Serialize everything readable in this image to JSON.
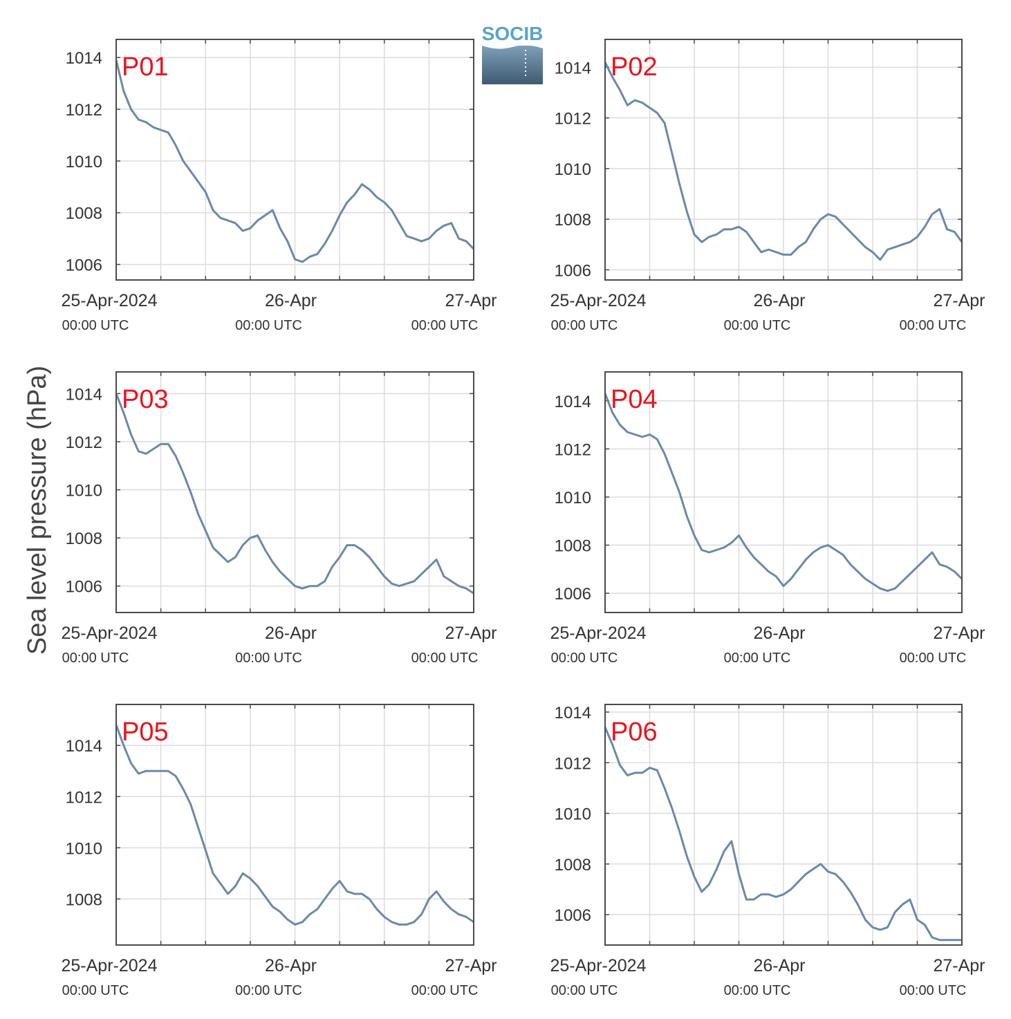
{
  "figure": {
    "ylabel": "Sea level pressure (hPa)",
    "logo_text": "SOCIB",
    "colors": {
      "line": "#6a89ab",
      "panel_label": "#e8141e",
      "axis": "#4a4a4a",
      "grid": "#dcdcdc",
      "text": "#333333",
      "logo_text": "#5ba3c9",
      "logo_top": "#7fa0b8",
      "logo_bottom": "#3f5a73"
    }
  },
  "chart_data": [
    {
      "type": "line",
      "panel": "P01",
      "x_ticks": [
        {
          "main": "25-Apr-2024",
          "sub": "00:00 UTC"
        },
        {
          "main": "26-Apr",
          "sub": "00:00 UTC"
        },
        {
          "main": "27-Apr",
          "sub": "00:00 UTC"
        }
      ],
      "xlim_hours": [
        0,
        48
      ],
      "ylim": [
        1005.4,
        1014.7
      ],
      "yticks": [
        1006,
        1008,
        1010,
        1012,
        1014
      ],
      "grid": true,
      "series": [
        {
          "hours": [
            0,
            1,
            2,
            3,
            4,
            5,
            6,
            7,
            8,
            9,
            10,
            11,
            12,
            13,
            14,
            15,
            16,
            17,
            18,
            19,
            20,
            21,
            22,
            23,
            24,
            25,
            26,
            27,
            28,
            29,
            30,
            31,
            32,
            33,
            34,
            35,
            36,
            37,
            38,
            39,
            40,
            41,
            42,
            43,
            44,
            45,
            46,
            47,
            48
          ],
          "values": [
            1013.9,
            1012.7,
            1012.0,
            1011.6,
            1011.5,
            1011.3,
            1011.2,
            1011.1,
            1010.6,
            1010.0,
            1009.6,
            1009.2,
            1008.8,
            1008.1,
            1007.8,
            1007.7,
            1007.6,
            1007.3,
            1007.4,
            1007.7,
            1007.9,
            1008.1,
            1007.4,
            1006.9,
            1006.2,
            1006.1,
            1006.3,
            1006.4,
            1006.8,
            1007.3,
            1007.9,
            1008.4,
            1008.7,
            1009.1,
            1008.9,
            1008.6,
            1008.4,
            1008.1,
            1007.6,
            1007.1,
            1007.0,
            1006.9,
            1007.0,
            1007.3,
            1007.5,
            1007.6,
            1007.0,
            1006.9,
            1006.6
          ]
        }
      ]
    },
    {
      "type": "line",
      "panel": "P02",
      "x_ticks": [
        {
          "main": "25-Apr-2024",
          "sub": "00:00 UTC"
        },
        {
          "main": "26-Apr",
          "sub": "00:00 UTC"
        },
        {
          "main": "27-Apr",
          "sub": "00:00 UTC"
        }
      ],
      "xlim_hours": [
        0,
        48
      ],
      "ylim": [
        1005.6,
        1015.1
      ],
      "yticks": [
        1006,
        1008,
        1010,
        1012,
        1014
      ],
      "grid": true,
      "series": [
        {
          "hours": [
            0,
            1,
            2,
            3,
            4,
            5,
            6,
            7,
            8,
            9,
            10,
            11,
            12,
            13,
            14,
            15,
            16,
            17,
            18,
            19,
            20,
            21,
            22,
            23,
            24,
            25,
            26,
            27,
            28,
            29,
            30,
            31,
            32,
            33,
            34,
            35,
            36,
            37,
            38,
            39,
            40,
            41,
            42,
            43,
            44,
            45,
            46,
            47,
            48
          ],
          "values": [
            1014.2,
            1013.6,
            1013.1,
            1012.5,
            1012.7,
            1012.6,
            1012.4,
            1012.2,
            1011.8,
            1010.6,
            1009.4,
            1008.3,
            1007.4,
            1007.1,
            1007.3,
            1007.4,
            1007.6,
            1007.6,
            1007.7,
            1007.5,
            1007.1,
            1006.7,
            1006.8,
            1006.7,
            1006.6,
            1006.6,
            1006.9,
            1007.1,
            1007.6,
            1008.0,
            1008.2,
            1008.1,
            1007.8,
            1007.5,
            1007.2,
            1006.9,
            1006.7,
            1006.4,
            1006.8,
            1006.9,
            1007.0,
            1007.1,
            1007.3,
            1007.7,
            1008.2,
            1008.4,
            1007.6,
            1007.5,
            1007.1
          ]
        }
      ]
    },
    {
      "type": "line",
      "panel": "P03",
      "x_ticks": [
        {
          "main": "25-Apr-2024",
          "sub": "00:00 UTC"
        },
        {
          "main": "26-Apr",
          "sub": "00:00 UTC"
        },
        {
          "main": "27-Apr",
          "sub": "00:00 UTC"
        }
      ],
      "xlim_hours": [
        0,
        48
      ],
      "ylim": [
        1004.9,
        1014.9
      ],
      "yticks": [
        1006,
        1008,
        1010,
        1012,
        1014
      ],
      "grid": true,
      "series": [
        {
          "hours": [
            0,
            1,
            2,
            3,
            4,
            5,
            6,
            7,
            8,
            9,
            10,
            11,
            12,
            13,
            14,
            15,
            16,
            17,
            18,
            19,
            20,
            21,
            22,
            23,
            24,
            25,
            26,
            27,
            28,
            29,
            30,
            31,
            32,
            33,
            34,
            35,
            36,
            37,
            38,
            39,
            40,
            41,
            42,
            43,
            44,
            45,
            46,
            47,
            48
          ],
          "values": [
            1014.0,
            1013.2,
            1012.3,
            1011.6,
            1011.5,
            1011.7,
            1011.9,
            1011.9,
            1011.4,
            1010.7,
            1009.9,
            1009.0,
            1008.3,
            1007.6,
            1007.3,
            1007.0,
            1007.2,
            1007.7,
            1008.0,
            1008.1,
            1007.5,
            1007.0,
            1006.6,
            1006.3,
            1006.0,
            1005.9,
            1006.0,
            1006.0,
            1006.2,
            1006.8,
            1007.2,
            1007.7,
            1007.7,
            1007.5,
            1007.2,
            1006.8,
            1006.4,
            1006.1,
            1006.0,
            1006.1,
            1006.2,
            1006.5,
            1006.8,
            1007.1,
            1006.4,
            1006.2,
            1006.0,
            1005.9,
            1005.7
          ]
        }
      ]
    },
    {
      "type": "line",
      "panel": "P04",
      "x_ticks": [
        {
          "main": "25-Apr-2024",
          "sub": "00:00 UTC"
        },
        {
          "main": "26-Apr",
          "sub": "00:00 UTC"
        },
        {
          "main": "27-Apr",
          "sub": "00:00 UTC"
        }
      ],
      "xlim_hours": [
        0,
        48
      ],
      "ylim": [
        1005.2,
        1015.2
      ],
      "yticks": [
        1006,
        1008,
        1010,
        1012,
        1014
      ],
      "grid": true,
      "series": [
        {
          "hours": [
            0,
            1,
            2,
            3,
            4,
            5,
            6,
            7,
            8,
            9,
            10,
            11,
            12,
            13,
            14,
            15,
            16,
            17,
            18,
            19,
            20,
            21,
            22,
            23,
            24,
            25,
            26,
            27,
            28,
            29,
            30,
            31,
            32,
            33,
            34,
            35,
            36,
            37,
            38,
            39,
            40,
            41,
            42,
            43,
            44,
            45,
            46,
            47,
            48
          ],
          "values": [
            1014.3,
            1013.5,
            1013.0,
            1012.7,
            1012.6,
            1012.5,
            1012.6,
            1012.4,
            1011.8,
            1011.0,
            1010.2,
            1009.2,
            1008.4,
            1007.8,
            1007.7,
            1007.8,
            1007.9,
            1008.1,
            1008.4,
            1007.9,
            1007.5,
            1007.2,
            1006.9,
            1006.7,
            1006.3,
            1006.6,
            1007.0,
            1007.4,
            1007.7,
            1007.9,
            1008.0,
            1007.8,
            1007.6,
            1007.2,
            1006.9,
            1006.6,
            1006.4,
            1006.2,
            1006.1,
            1006.2,
            1006.5,
            1006.8,
            1007.1,
            1007.4,
            1007.7,
            1007.2,
            1007.1,
            1006.9,
            1006.6
          ]
        }
      ]
    },
    {
      "type": "line",
      "panel": "P05",
      "x_ticks": [
        {
          "main": "25-Apr-2024",
          "sub": "00:00 UTC"
        },
        {
          "main": "26-Apr",
          "sub": "00:00 UTC"
        },
        {
          "main": "27-Apr",
          "sub": "00:00 UTC"
        }
      ],
      "xlim_hours": [
        0,
        48
      ],
      "ylim": [
        1006.2,
        1015.6
      ],
      "yticks": [
        1008,
        1010,
        1012,
        1014
      ],
      "grid": true,
      "series": [
        {
          "hours": [
            0,
            1,
            2,
            3,
            4,
            5,
            6,
            7,
            8,
            9,
            10,
            11,
            12,
            13,
            14,
            15,
            16,
            17,
            18,
            19,
            20,
            21,
            22,
            23,
            24,
            25,
            26,
            27,
            28,
            29,
            30,
            31,
            32,
            33,
            34,
            35,
            36,
            37,
            38,
            39,
            40,
            41,
            42,
            43,
            44,
            45,
            46,
            47,
            48
          ],
          "values": [
            1014.8,
            1014.0,
            1013.3,
            1012.9,
            1013.0,
            1013.0,
            1013.0,
            1013.0,
            1012.8,
            1012.3,
            1011.7,
            1010.8,
            1009.9,
            1009.0,
            1008.6,
            1008.2,
            1008.5,
            1009.0,
            1008.8,
            1008.5,
            1008.1,
            1007.7,
            1007.5,
            1007.2,
            1007.0,
            1007.1,
            1007.4,
            1007.6,
            1008.0,
            1008.4,
            1008.7,
            1008.3,
            1008.2,
            1008.2,
            1008.0,
            1007.6,
            1007.3,
            1007.1,
            1007.0,
            1007.0,
            1007.1,
            1007.4,
            1008.0,
            1008.3,
            1007.9,
            1007.6,
            1007.4,
            1007.3,
            1007.1
          ]
        }
      ]
    },
    {
      "type": "line",
      "panel": "P06",
      "x_ticks": [
        {
          "main": "25-Apr-2024",
          "sub": "00:00 UTC"
        },
        {
          "main": "26-Apr",
          "sub": "00:00 UTC"
        },
        {
          "main": "27-Apr",
          "sub": "00:00 UTC"
        }
      ],
      "xlim_hours": [
        0,
        48
      ],
      "ylim": [
        1004.8,
        1014.3
      ],
      "yticks": [
        1006,
        1008,
        1010,
        1012,
        1014
      ],
      "grid": true,
      "series": [
        {
          "hours": [
            0,
            1,
            2,
            3,
            4,
            5,
            6,
            7,
            8,
            9,
            10,
            11,
            12,
            13,
            14,
            15,
            16,
            17,
            18,
            19,
            20,
            21,
            22,
            23,
            24,
            25,
            26,
            27,
            28,
            29,
            30,
            31,
            32,
            33,
            34,
            35,
            36,
            37,
            38,
            39,
            40,
            41,
            42,
            43,
            44,
            45,
            46,
            47,
            48
          ],
          "values": [
            1013.4,
            1012.7,
            1011.9,
            1011.5,
            1011.6,
            1011.6,
            1011.8,
            1011.7,
            1011.0,
            1010.2,
            1009.3,
            1008.3,
            1007.5,
            1006.9,
            1007.2,
            1007.8,
            1008.5,
            1008.9,
            1007.6,
            1006.6,
            1006.6,
            1006.8,
            1006.8,
            1006.7,
            1006.8,
            1007.0,
            1007.3,
            1007.6,
            1007.8,
            1008.0,
            1007.7,
            1007.6,
            1007.3,
            1006.9,
            1006.4,
            1005.8,
            1005.5,
            1005.4,
            1005.5,
            1006.1,
            1006.4,
            1006.6,
            1005.8,
            1005.6,
            1005.1,
            1005.0,
            1005.0,
            1005.0,
            1005.0
          ]
        }
      ]
    }
  ]
}
